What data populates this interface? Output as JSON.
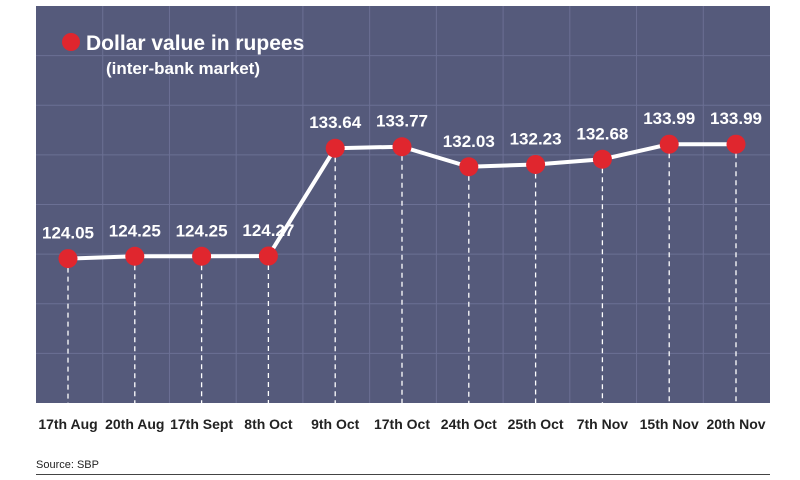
{
  "chart_data": {
    "type": "line",
    "title": "Dollar value in rupees",
    "subtitle": "(inter-bank market)",
    "categories": [
      "17th Aug",
      "20th Aug",
      "17th Sept",
      "8th Oct",
      "9th Oct",
      "17th Oct",
      "24th Oct",
      "25th Oct",
      "7th Nov",
      "15th Nov",
      "20th Nov"
    ],
    "series": [
      {
        "name": "Dollar value in rupees",
        "values": [
          124.05,
          124.25,
          124.25,
          124.27,
          133.64,
          133.77,
          132.03,
          132.23,
          132.68,
          133.99,
          133.99
        ]
      }
    ],
    "value_labels": [
      "124.05",
      "124.25",
      "124.25",
      "124.27",
      "133.64",
      "133.77",
      "132.03",
      "132.23",
      "132.68",
      "133.99",
      "133.99"
    ],
    "ylim": [
      111.5,
      146
    ],
    "grid": true,
    "legend_placement": "top-left"
  },
  "source": "Source: SBP",
  "colors": {
    "panel": "#555a7b",
    "grid": "#6b7094",
    "marker": "#e0262e",
    "line": "#ffffff"
  }
}
